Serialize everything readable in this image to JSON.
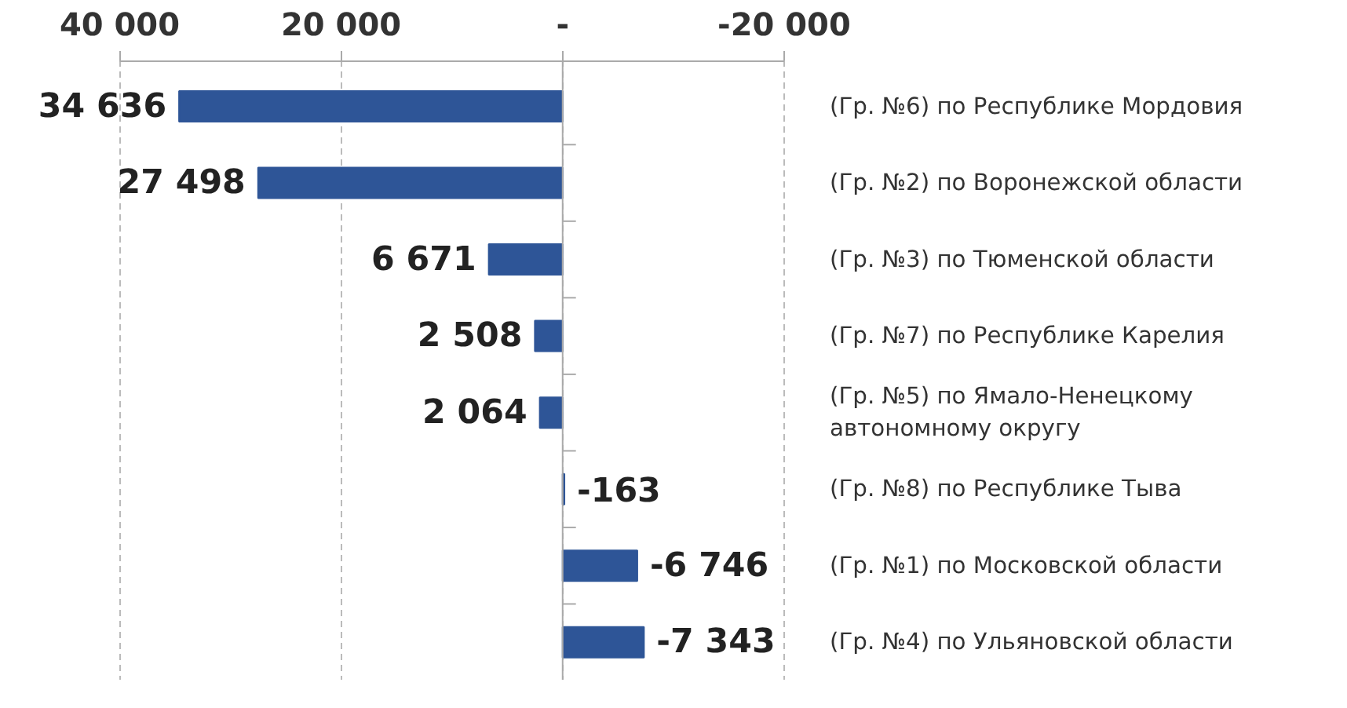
{
  "chart_data": {
    "type": "bar",
    "orientation": "horizontal",
    "categories": [
      "(Гр. №6) по Республике Мордовия",
      "(Гр. №2) по Воронежской области",
      "(Гр. №3) по Тюменской области",
      "(Гр. №7) по Республике Карелия",
      "(Гр. №5) по Ямало-Ненецкому\nавтономному округу",
      "(Гр. №8) по Республике Тыва",
      "(Гр. №1) по Московской области",
      "(Гр. №4) по Ульяновской области"
    ],
    "values": [
      34636,
      27498,
      6671,
      2508,
      2064,
      -163,
      -6746,
      -7343
    ],
    "value_labels": [
      "34 636",
      "27 498",
      "6 671",
      "2 508",
      "2 064",
      "-163",
      "-6 746",
      "-7 343"
    ],
    "color": "#2e5597",
    "xlim": [
      40000,
      -20000
    ],
    "xticks": [
      {
        "value": 40000,
        "label": "40 000"
      },
      {
        "value": 20000,
        "label": "20 000"
      },
      {
        "value": 0,
        "label": "-"
      },
      {
        "value": -20000,
        "label": "-20 000"
      }
    ],
    "grid": "x",
    "legend": false
  }
}
